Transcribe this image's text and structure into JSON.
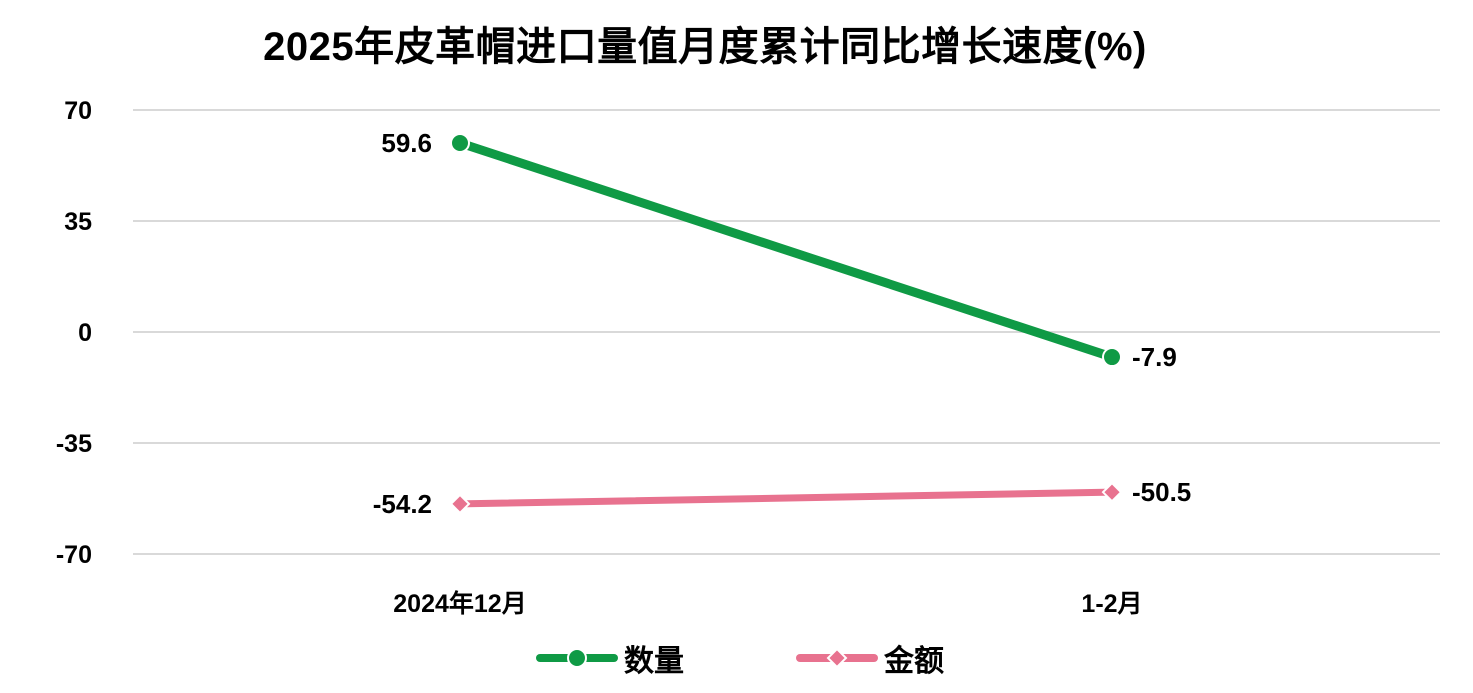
{
  "chart_data": {
    "type": "line",
    "title": "2025年皮革帽进口量值月度累计同比增长速度(%)",
    "categories": [
      "2024年12月",
      "1-2月"
    ],
    "series": [
      {
        "name": "数量",
        "values": [
          59.6,
          -7.9
        ],
        "color": "#0f9a45",
        "marker": "circle",
        "labels": [
          "59.6",
          "-7.9"
        ]
      },
      {
        "name": "金额",
        "values": [
          -54.2,
          -50.5
        ],
        "color": "#e8728f",
        "marker": "diamond",
        "labels": [
          "-54.2",
          "-50.5"
        ]
      }
    ],
    "xlabel": "",
    "ylabel": "",
    "ylim": [
      -70,
      70
    ],
    "yticks": [
      70,
      35,
      0,
      -35,
      -70
    ],
    "ytick_labels": [
      "70",
      "35",
      "0",
      "-35",
      "-70"
    ],
    "grid": true,
    "legend_position": "bottom"
  },
  "legend": {
    "items": [
      {
        "label": "数量"
      },
      {
        "label": "金额"
      }
    ]
  }
}
